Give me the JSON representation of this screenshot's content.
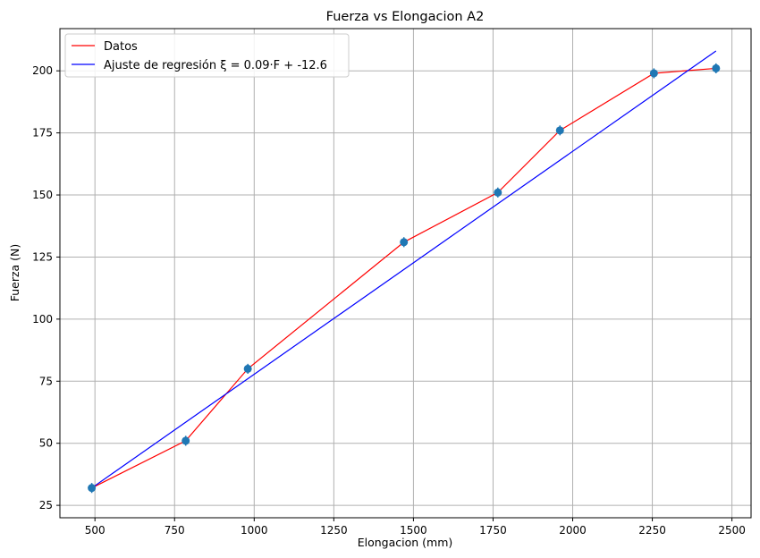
{
  "chart_data": {
    "type": "line",
    "title": "Fuerza vs Elongacion A2",
    "xlabel": "Elongacion (mm)",
    "ylabel": "Fuerza (N)",
    "xlim": [
      390,
      2560
    ],
    "ylim": [
      20,
      217
    ],
    "grid": true,
    "legend_position": "top-left",
    "x_ticks": [
      500,
      750,
      1000,
      1250,
      1500,
      1750,
      2000,
      2250,
      2500
    ],
    "y_ticks": [
      25,
      50,
      75,
      100,
      125,
      150,
      175,
      200
    ],
    "x_tick_labels": [
      "500",
      "750",
      "1000",
      "1250",
      "1500",
      "1750",
      "2000",
      "2250",
      "2500"
    ],
    "y_tick_labels": [
      "25",
      "50",
      "75",
      "100",
      "125",
      "150",
      "175",
      "200"
    ],
    "series": [
      {
        "name": "Datos",
        "kind": "line",
        "color": "#ff0000",
        "x": [
          490,
          785,
          980,
          1470,
          1765,
          1960,
          2255,
          2450
        ],
        "y": [
          32,
          51,
          80,
          131,
          151,
          176,
          199,
          201
        ]
      },
      {
        "name": "Ajuste de regresión ξ = 0.09·F + -12.6",
        "kind": "line",
        "color": "#0000ff",
        "x": [
          490,
          2450
        ],
        "y": [
          32,
          208
        ]
      }
    ],
    "error_points": {
      "color": "#1f77b4",
      "x": [
        490,
        785,
        980,
        1470,
        1765,
        1960,
        2255,
        2450
      ],
      "y": [
        32,
        51,
        80,
        131,
        151,
        176,
        199,
        201
      ],
      "yerr": 2
    }
  }
}
